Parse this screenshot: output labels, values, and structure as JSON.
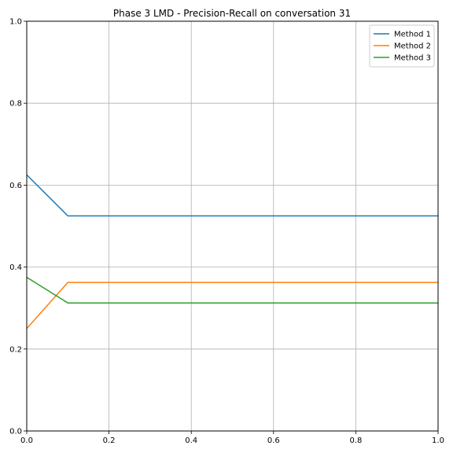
{
  "chart_data": {
    "type": "line",
    "title": "Phase 3 LMD - Precision-Recall on conversation 31",
    "xlabel": "",
    "ylabel": "",
    "xlim": [
      0.0,
      1.0
    ],
    "ylim": [
      0.0,
      1.0
    ],
    "xticks": [
      "0.0",
      "0.2",
      "0.4",
      "0.6",
      "0.8",
      "1.0"
    ],
    "yticks": [
      "0.0",
      "0.2",
      "0.4",
      "0.6",
      "0.8",
      "1.0"
    ],
    "grid": true,
    "legend_position": "top-right",
    "series": [
      {
        "name": "Method 1",
        "color": "#1f77b4",
        "x": [
          0.0,
          0.1,
          1.0
        ],
        "y": [
          0.625,
          0.525,
          0.525
        ]
      },
      {
        "name": "Method 2",
        "color": "#ff7f0e",
        "x": [
          0.0,
          0.1,
          1.0
        ],
        "y": [
          0.25,
          0.3625,
          0.3625
        ]
      },
      {
        "name": "Method 3",
        "color": "#2ca02c",
        "x": [
          0.0,
          0.1,
          1.0
        ],
        "y": [
          0.375,
          0.3125,
          0.3125
        ]
      }
    ]
  }
}
